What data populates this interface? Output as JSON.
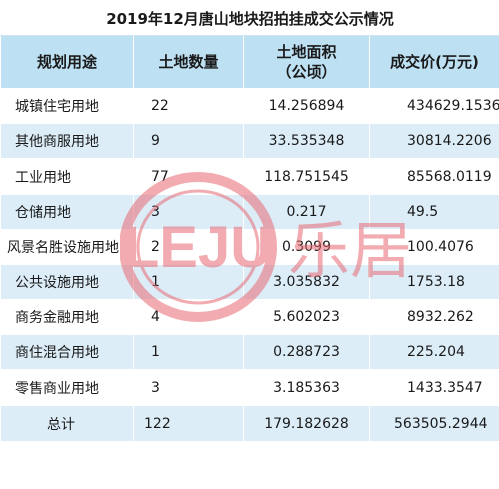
{
  "title": "2019年12月唐山地块招拍挂成交公示情况",
  "headers": {
    "col1": "规划用途",
    "col2": "土地数量",
    "col3_line1": "土地面积",
    "col3_line2": "（公顷）",
    "col4": "成交价(万元)"
  },
  "rows": [
    {
      "use": "城镇住宅用地",
      "count": "22",
      "area": "14.256894",
      "price": "434629.1536"
    },
    {
      "use": "其他商服用地",
      "count": "9",
      "area": "33.535348",
      "price": "30814.2206"
    },
    {
      "use": "工业用地",
      "count": "77",
      "area": "118.751545",
      "price": "85568.0119"
    },
    {
      "use": "仓储用地",
      "count": "3",
      "area": "0.217",
      "price": "49.5"
    },
    {
      "use": "风景名胜设施用地",
      "count": "2",
      "area": "0.3099",
      "price": "100.4076"
    },
    {
      "use": "公共设施用地",
      "count": "1",
      "area": "3.035832",
      "price": "1753.18"
    },
    {
      "use": "商务金融用地",
      "count": "4",
      "area": "5.602023",
      "price": "8932.262"
    },
    {
      "use": "商住混合用地",
      "count": "1",
      "area": "0.288723",
      "price": "225.204"
    },
    {
      "use": "零售商业用地",
      "count": "3",
      "area": "3.185363",
      "price": "1433.3547"
    }
  ],
  "total": {
    "label": "总计",
    "count": "122",
    "area": "179.182628",
    "price": "563505.2944"
  },
  "watermark": {
    "logo_text": "LEJU",
    "brand_text": "乐居"
  },
  "colors": {
    "header_bg": "#bde0f3",
    "stripe_bg": "#dcedf8",
    "watermark": "#e86a72"
  }
}
